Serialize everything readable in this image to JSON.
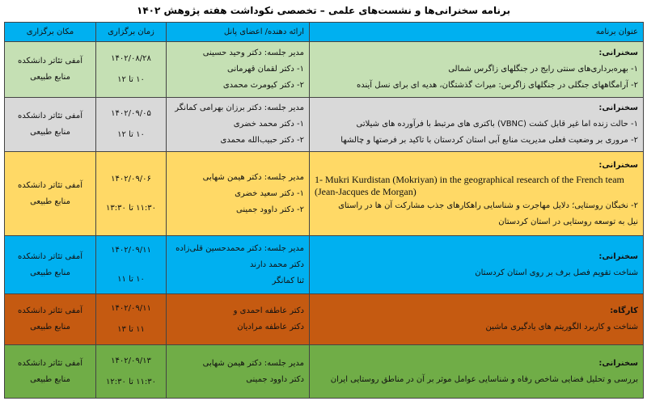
{
  "title": "برنامه سخنرانی‌ها و نشست‌های علمی – تخصصی نکوداشت هفته پژوهش ۱۴۰۲",
  "headers": {
    "program": "عنوان برنامه",
    "presenter": "ارائه دهنده/ اعضای پانل",
    "time": "زمان برگزاری",
    "place": "مکان برگزاری"
  },
  "rows": [
    {
      "color": "#c5e0b4",
      "type": "سخنرانی:",
      "items": [
        "۱- بهره‌برداری‌های سنتی رایج در جنگلهای زاگرس شمالی",
        "۲- آرامگاههای جنگلی در جنگلهای زاگرس: میراث گذشتگان، هدیه ای برای نسل آینده"
      ],
      "panel": [
        "مدیر جلسه: دکتر وحید حسینی",
        "۱- دکتر لقمان قهرمانی",
        "۲- دکتر کیومرث محمدی"
      ],
      "date": "۱۴۰۲/۰۸/۲۸",
      "hours": "۱۰ تا ۱۲",
      "place": [
        "آمفی تئاتر دانشکده",
        "منابع طبیعی"
      ]
    },
    {
      "color": "#d9d9d9",
      "type": "سخنرانی:",
      "items": [
        "۱- حالت زنده اما غیر قابل کشت (VBNC) باکتری های مرتبط با فرآورده های شیلاتی",
        "۲- مروری بر وضعیت فعلی مدیریت منابع آبی استان کردستان با تاکید بر فرصتها و چالشها"
      ],
      "panel": [
        "مدیر جلسه: دکتر برزان بهرامی کمانگر",
        "۱- دکتر محمد خضری",
        "۲- دکتر حبیب‌الله محمدی"
      ],
      "date": "۱۴۰۲/۰۹/۰۵",
      "hours": "۱۰ تا ۱۲",
      "place": [
        "آمفی تئاتر دانشکده",
        "منابع طبیعی"
      ]
    },
    {
      "color": "#ffd966",
      "type": "سخنرانی:",
      "english": "1- Mukri Kurdistan (Mokriyan) in the geographical research of the French team (Jean-Jacques de Morgan)",
      "items": [
        "۲- نخبگان روستایی؛ دلایل مهاجرت و شناسایی راهکارهای جذب مشارکت آن ها در راستای",
        "نیل به توسعه روستایی در استان کردستان"
      ],
      "panel": [
        "مدیر جلسه: دکتر هیمن شهابی",
        "۱- دکتر سعید خضری",
        "۲- دکتر داوود جمینی"
      ],
      "date": "۱۴۰۲/۰۹/۰۶",
      "hours": "۱۱:۳۰ تا ۱۳:۳۰",
      "place": [
        "آمفی تئاتر دانشکده",
        "منابع طبیعی"
      ]
    },
    {
      "color": "#00b0f0",
      "type": "سخنرانی:",
      "items": [
        "شناخت تقویم فصل برف بر روی استان کردستان"
      ],
      "panel": [
        "مدیر جلسه: دکتر محمدحسین قلی‌زاده",
        "دکتر محمد دارند",
        "ثنا کمانگر"
      ],
      "date": "۱۴۰۲/۰۹/۱۱",
      "hours": "۱۰ تا ۱۱",
      "place": [
        "آمفی تئاتر دانشکده",
        "منابع طبیعی"
      ]
    },
    {
      "color": "#c55a11",
      "type": "کارگاه:",
      "items": [
        "شناخت و کاربرد الگوریتم های یادگیری ماشین"
      ],
      "panel": [
        "دکتر عاطفه احمدی و",
        "دکتر عاطفه مرادیان"
      ],
      "date": "۱۴۰۲/۰۹/۱۱",
      "hours": "۱۱ تا ۱۳",
      "place": [
        "آمفی تئاتر دانشکده",
        "منابع طبیعی"
      ]
    },
    {
      "color": "#70ad47",
      "type": "سخنرانی:",
      "items": [
        "بررسی و تحلیل فضایی شاخص رفاه و شناسایی عوامل موثر بر آن در مناطق روستایی ایران"
      ],
      "panel": [
        "مدیر جلسه: دکتر هیمن شهابی",
        "دکتر داوود جمینی"
      ],
      "date": "۱۴۰۲/۰۹/۱۳",
      "hours": "۱۱:۳۰ تا ۱۲:۳۰",
      "place": [
        "آمفی تئاتر دانشکده",
        "منابع طبیعی"
      ]
    }
  ]
}
